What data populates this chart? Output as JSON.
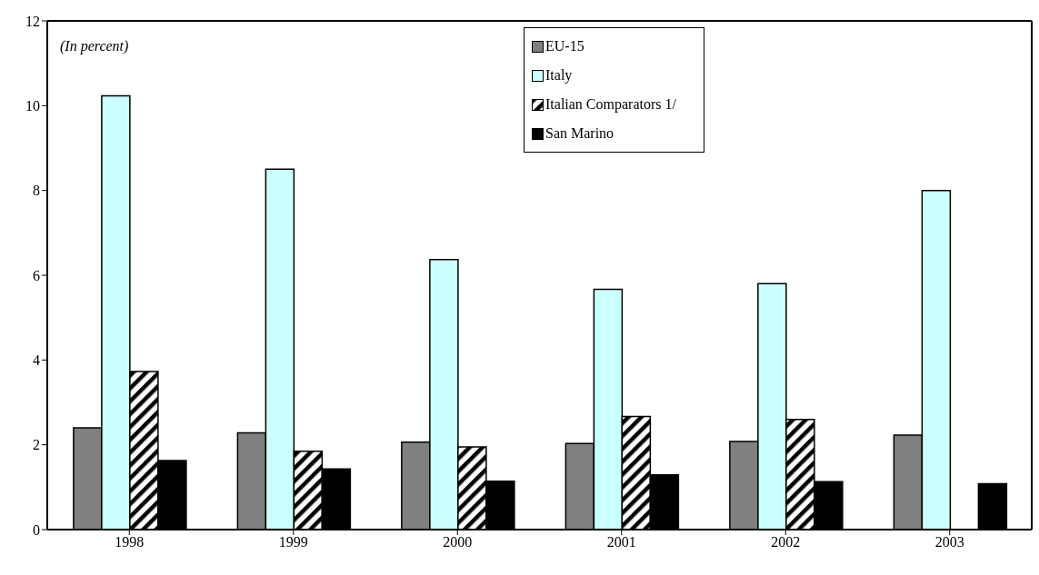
{
  "chart_data": {
    "type": "bar",
    "annotations": [
      "(In percent)"
    ],
    "categories": [
      "1998",
      "1999",
      "2000",
      "2001",
      "2002",
      "2003"
    ],
    "series": [
      {
        "name": "EU-15",
        "color": "#808080",
        "values": [
          2.4,
          2.28,
          2.06,
          2.03,
          2.08,
          2.23
        ]
      },
      {
        "name": "Italy",
        "color": "#ccffff",
        "values": [
          10.23,
          8.5,
          6.37,
          5.67,
          5.8,
          8.0
        ]
      },
      {
        "name": "Italian Comparators 1/",
        "color": "#000000",
        "values": [
          3.73,
          1.85,
          1.95,
          2.67,
          2.6,
          null
        ]
      },
      {
        "name": "San Marino",
        "color": "#000000",
        "values": [
          1.63,
          1.43,
          1.14,
          1.29,
          1.13,
          1.08
        ]
      }
    ],
    "ylim": [
      0,
      12
    ],
    "yticks": [
      0,
      2,
      4,
      6,
      8,
      10,
      12
    ],
    "grid": false,
    "legend": "top"
  }
}
